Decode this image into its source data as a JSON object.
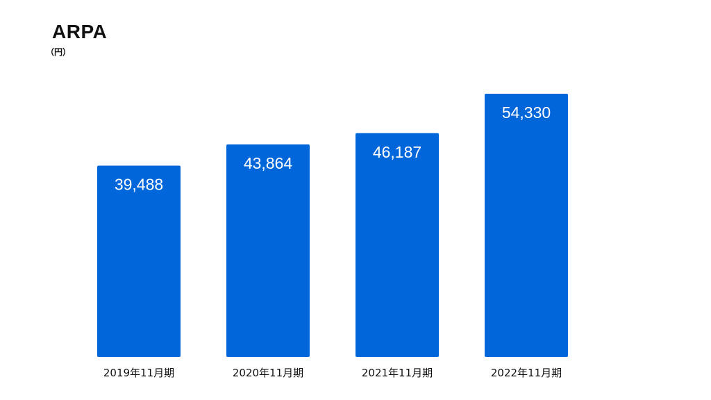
{
  "chart_data": {
    "type": "bar",
    "title": "ARPA",
    "unit_label": "（円）",
    "categories": [
      "2019年11月期",
      "2020年11月期",
      "2021年11月期",
      "2022年11月期"
    ],
    "values": [
      39488,
      43864,
      46187,
      54330
    ],
    "data_labels": [
      "39,488",
      "43,864",
      "46,187",
      "54,330"
    ],
    "ylim": [
      0,
      59000
    ],
    "grid": false,
    "legend": "none",
    "bar_color": "#0066DA"
  }
}
